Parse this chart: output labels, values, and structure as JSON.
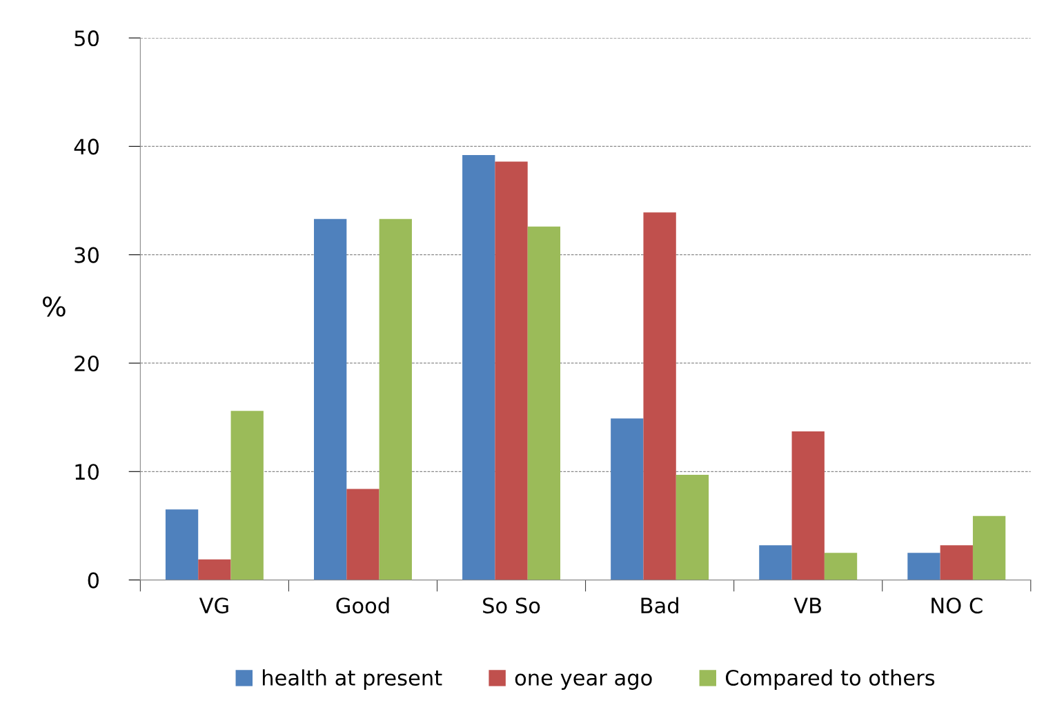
{
  "chart_data": {
    "type": "bar",
    "ylabel": "%",
    "categories": [
      "VG",
      "Good",
      "So So",
      "Bad",
      "VB",
      "NO C"
    ],
    "series": [
      {
        "name": "health at present",
        "color": "#4f81bd",
        "values": [
          6.5,
          33.3,
          39.2,
          14.9,
          3.2,
          2.5
        ]
      },
      {
        "name": "one year ago",
        "color": "#c0504d",
        "values": [
          1.9,
          8.4,
          38.6,
          33.9,
          13.7,
          3.2
        ]
      },
      {
        "name": "Compared to others",
        "color": "#9bbb59",
        "values": [
          15.6,
          33.3,
          32.6,
          9.7,
          2.5,
          5.9
        ]
      }
    ],
    "ylim": [
      0,
      50
    ],
    "yticks": [
      0,
      10,
      20,
      30,
      40,
      50
    ],
    "grid": "y",
    "legend": "bottom"
  }
}
